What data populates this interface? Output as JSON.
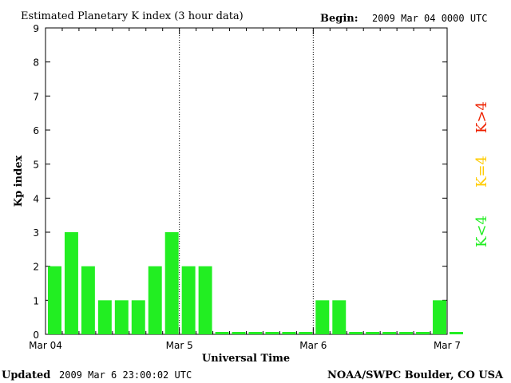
{
  "header": {
    "title": "Estimated Planetary K index (3 hour data)",
    "begin_label": "Begin:",
    "begin_value": "2009 Mar 04 0000 UTC"
  },
  "footer": {
    "updated_label": "Updated",
    "updated_value": "2009 Mar  6 23:00:02 UTC",
    "source": "NOAA/SWPC Boulder, CO USA"
  },
  "legend": [
    {
      "label": "K<4",
      "color": "#22ee22"
    },
    {
      "label": "K=4",
      "color": "#ffcc00"
    },
    {
      "label": "K>4",
      "color": "#ee2200"
    }
  ],
  "chart_data": {
    "type": "bar",
    "ylabel": "Kp index",
    "xlabel": "Universal Time",
    "ylim": [
      0,
      9
    ],
    "yticks": [
      "0",
      "1",
      "2",
      "3",
      "4",
      "5",
      "6",
      "7",
      "8",
      "9"
    ],
    "xticks": [
      "Mar 04",
      "Mar 5",
      "Mar 6",
      "Mar 7"
    ],
    "bar_color": "#22ee22",
    "values": [
      2,
      3,
      2,
      1,
      1,
      1,
      2,
      3,
      2,
      2,
      0,
      0,
      0,
      0,
      0,
      0,
      1,
      1,
      0,
      0,
      0,
      0,
      0,
      1,
      0
    ]
  }
}
